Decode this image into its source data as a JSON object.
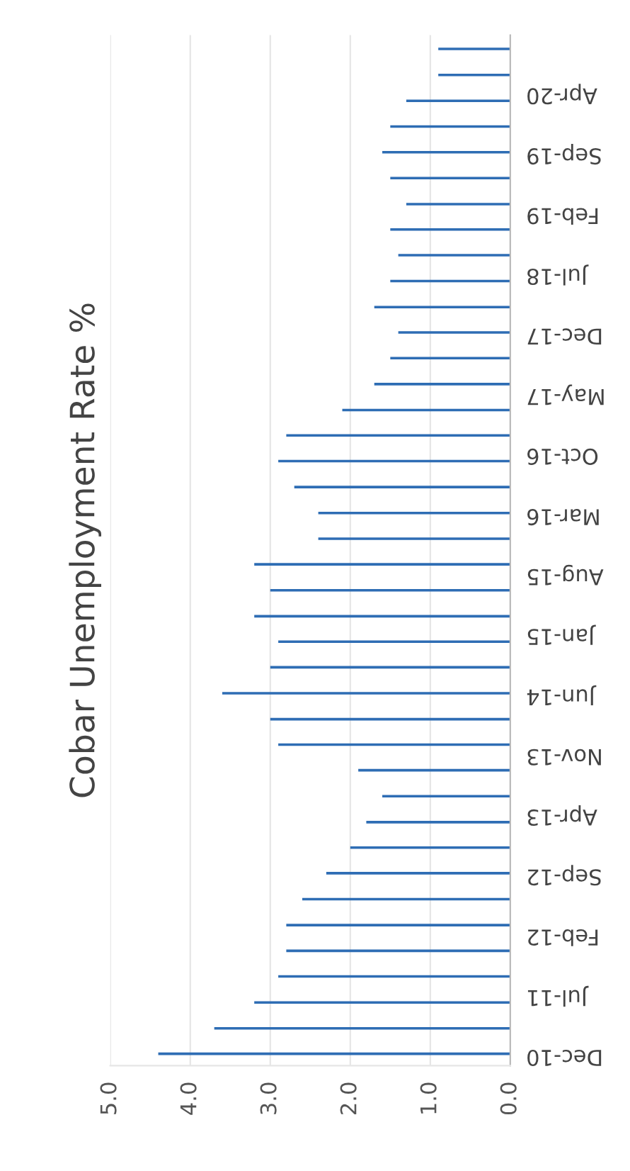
{
  "chart_data": {
    "type": "bar",
    "orientation": "horizontal",
    "title": "Cobar Unemployment Rate %",
    "color": "#2e6db4",
    "grid": "x",
    "x": [
      "2010-12",
      "2011-03",
      "2011-06",
      "2011-09",
      "2011-12",
      "2012-03",
      "2012-06",
      "2012-09",
      "2012-12",
      "2013-03",
      "2013-06",
      "2013-09",
      "2013-12",
      "2014-03",
      "2014-06",
      "2014-09",
      "2014-12",
      "2015-03",
      "2015-06",
      "2015-09",
      "2015-12",
      "2016-03",
      "2016-06",
      "2016-09",
      "2016-12",
      "2017-03",
      "2017-06",
      "2017-09",
      "2017-12",
      "2018-03",
      "2018-06",
      "2018-09",
      "2018-12",
      "2019-03",
      "2019-06",
      "2019-09",
      "2019-12",
      "2020-03",
      "2020-06",
      "2020-09"
    ],
    "values": [
      4.4,
      3.7,
      3.2,
      2.9,
      2.8,
      2.8,
      2.6,
      2.3,
      2.0,
      1.8,
      1.6,
      1.9,
      2.9,
      3.0,
      3.6,
      3.0,
      2.9,
      3.2,
      3.0,
      3.2,
      2.4,
      2.4,
      2.7,
      2.9,
      2.8,
      2.1,
      1.7,
      1.5,
      1.4,
      1.7,
      1.5,
      1.4,
      1.5,
      1.3,
      1.5,
      1.6,
      1.5,
      1.3,
      0.9,
      0.9
    ],
    "xlim": [
      5.0,
      0.0
    ],
    "xticks": [
      {
        "value": 5.0,
        "label": "5.0"
      },
      {
        "value": 4.0,
        "label": "4.0"
      },
      {
        "value": 3.0,
        "label": "3.0"
      },
      {
        "value": 2.0,
        "label": "2.0"
      },
      {
        "value": 1.0,
        "label": "1.0"
      },
      {
        "value": 0.0,
        "label": "0.0"
      }
    ],
    "ylim": [
      "2010-10-20",
      "2020-10-20"
    ],
    "yticks": [
      {
        "value": "2010-12",
        "label": "Dec-10"
      },
      {
        "value": "2011-07",
        "label": "Jul-11"
      },
      {
        "value": "2012-02",
        "label": "Feb-12"
      },
      {
        "value": "2012-09",
        "label": "Sep-12"
      },
      {
        "value": "2013-04",
        "label": "Apr-13"
      },
      {
        "value": "2013-11",
        "label": "Nov-13"
      },
      {
        "value": "2014-06",
        "label": "Jun-14"
      },
      {
        "value": "2015-01",
        "label": "Jan-15"
      },
      {
        "value": "2015-08",
        "label": "Aug-15"
      },
      {
        "value": "2016-03",
        "label": "Mar-16"
      },
      {
        "value": "2016-10",
        "label": "Oct-16"
      },
      {
        "value": "2017-05",
        "label": "May-17"
      },
      {
        "value": "2017-12",
        "label": "Dec-17"
      },
      {
        "value": "2018-07",
        "label": "Jul-18"
      },
      {
        "value": "2019-02",
        "label": "Feb-19"
      },
      {
        "value": "2019-09",
        "label": "Sep-19"
      },
      {
        "value": "2020-04",
        "label": "Apr-20"
      }
    ]
  }
}
